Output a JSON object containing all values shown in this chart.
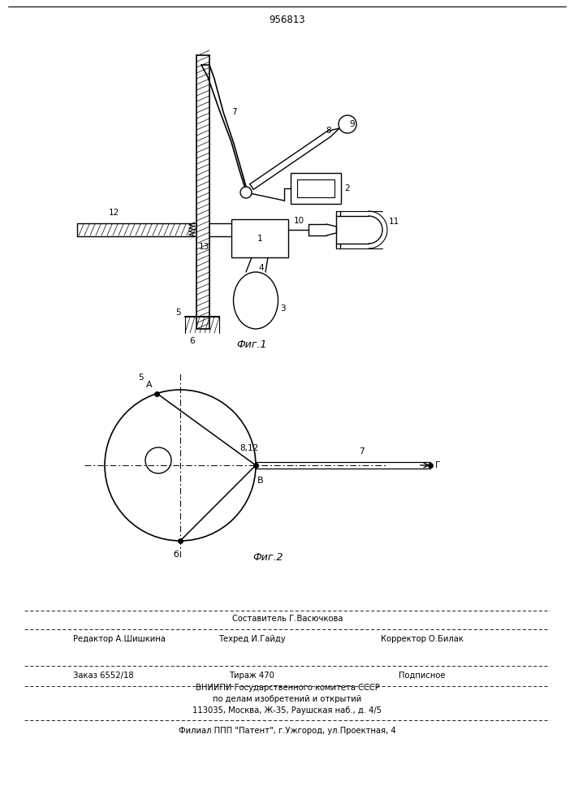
{
  "title": "956813",
  "background_color": "#ffffff",
  "fig1_caption": "Фиг.1",
  "fig2_caption": "Фиг.2",
  "footer_line1": "Составитель Г.Васючкова",
  "footer_line2a": "Редактор А.Шишкина",
  "footer_line2b": "Техред И.Гайду",
  "footer_line2c": "Корректор О.Билак",
  "footer_line3a": "Заказ 6552/18",
  "footer_line3b": "Тираж 470",
  "footer_line3c": "Подписное",
  "footer_line4": "ВНИИПИ Государственного комитета СССР",
  "footer_line5": "по делам изобретений и открытий",
  "footer_line6": "113035, Москва, Ж-35, Раушская наб., д. 4/5",
  "footer_line7": "Филиал ППП \"Патент\", г.Ужгород, ул.Проектная, 4"
}
